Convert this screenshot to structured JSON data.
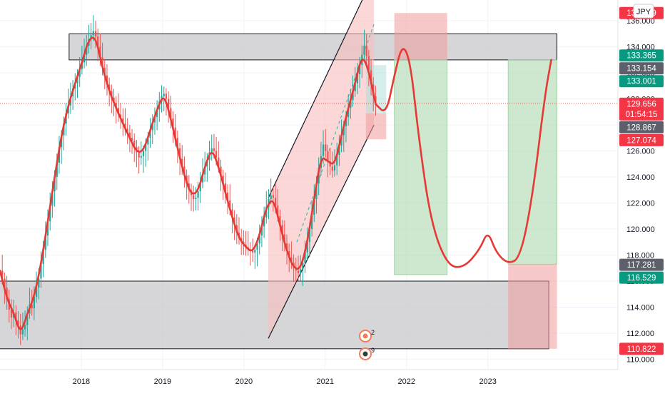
{
  "currency_label": "JPY",
  "colors": {
    "up_candle": "#26a69a",
    "down_candle": "#ef5350",
    "projection_curve": "#e53935",
    "zone_fill": "#c8c8cc",
    "channel_fill": "#f8bcbc",
    "profit_fill": "#a5d6a7",
    "loss_fill": "#ef9a9a",
    "teal_fill": "#b2dfdb",
    "current_price_line": "#ef5350",
    "grid": "#f0f3fa",
    "axis_text": "#131722"
  },
  "badges": [
    {
      "label": "2",
      "kind": "marker"
    },
    {
      "label": "9",
      "kind": "marker"
    }
  ],
  "chart_data": {
    "type": "candlestick",
    "title": "",
    "xlabel": "",
    "ylabel": "",
    "x_ticks": [
      "2018",
      "2019",
      "2020",
      "2021",
      "2022",
      "2023"
    ],
    "y_ticks": [
      "110.000",
      "112.000",
      "114.000",
      "116.000",
      "118.000",
      "120.000",
      "122.000",
      "124.000",
      "126.000",
      "128.000",
      "130.000",
      "132.000",
      "134.000",
      "136.000"
    ],
    "ylim": [
      109.2,
      137.6
    ],
    "xlim": [
      2017.0,
      2024.6
    ],
    "grid": true,
    "price_labels": [
      {
        "value": "136.629",
        "style": "red"
      },
      {
        "value": "133.365",
        "style": "green"
      },
      {
        "value": "133.154",
        "style": "gray"
      },
      {
        "value": "133.001",
        "style": "green"
      },
      {
        "value": "129.656",
        "style": "red",
        "extra": "01:54:15"
      },
      {
        "value": "128.867",
        "style": "gray"
      },
      {
        "value": "127.074",
        "style": "red"
      },
      {
        "value": "117.281",
        "style": "gray"
      },
      {
        "value": "116.529",
        "style": "green"
      },
      {
        "value": "110.822",
        "style": "red"
      }
    ],
    "current_price": 129.656,
    "zones": [
      {
        "name": "resistance",
        "x": [
          2017.85,
          2023.85
        ],
        "y": [
          133.0,
          135.0
        ]
      },
      {
        "name": "support",
        "x": [
          2016.9,
          2023.75
        ],
        "y": [
          110.8,
          116.0
        ]
      }
    ],
    "channel": {
      "x": [
        2020.3,
        2021.6
      ],
      "lower": [
        111.6,
        128.0
      ],
      "upper": [
        122.4,
        139.5
      ]
    },
    "positions": [
      {
        "name": "short",
        "x": [
          2021.85,
          2022.5
        ],
        "stop": [
          133.0,
          136.6
        ],
        "target": [
          116.5,
          133.0
        ]
      },
      {
        "name": "long",
        "x": [
          2023.25,
          2023.85
        ],
        "target": [
          117.3,
          133.0
        ],
        "stop": [
          110.8,
          117.3
        ]
      },
      {
        "name": "small",
        "x": [
          2021.5,
          2021.75
        ],
        "target": [
          128.9,
          132.6
        ],
        "stop": [
          126.9,
          128.9
        ]
      }
    ],
    "candles_close": [
      116.8,
      116.2,
      115.5,
      114.6,
      113.8,
      113.2,
      113.6,
      113.0,
      112.6,
      111.9,
      112.3,
      112.6,
      113.5,
      114.2,
      113.9,
      114.8,
      115.5,
      116.2,
      117.3,
      118.4,
      119.5,
      120.6,
      121.8,
      122.9,
      124.0,
      125.1,
      126.3,
      127.2,
      128.1,
      128.9,
      129.5,
      130.2,
      130.8,
      131.2,
      131.7,
      132.3,
      132.8,
      133.4,
      134.1,
      134.6,
      134.9,
      135.2,
      134.8,
      134.0,
      133.2,
      132.4,
      131.8,
      131.1,
      130.6,
      130.1,
      129.7,
      129.3,
      128.8,
      128.5,
      128.1,
      127.7,
      127.4,
      127.0,
      126.8,
      126.3,
      125.9,
      125.5,
      125.6,
      126.0,
      126.5,
      127.0,
      127.6,
      128.2,
      128.6,
      129.2,
      129.8,
      130.2,
      130.4,
      130.0,
      129.3,
      128.5,
      127.8,
      127.0,
      126.2,
      125.4,
      124.8,
      124.1,
      123.5,
      123.0,
      122.6,
      122.3,
      122.4,
      122.9,
      123.6,
      124.2,
      124.8,
      125.3,
      125.9,
      126.2,
      126.0,
      125.5,
      124.8,
      124.1,
      123.5,
      122.8,
      122.2,
      121.5,
      120.9,
      120.3,
      119.7,
      119.3,
      119.0,
      118.8,
      118.6,
      118.4,
      118.3,
      118.2,
      118.4,
      118.9,
      119.5,
      120.2,
      120.9,
      121.7,
      122.3,
      122.6,
      122.4,
      121.8,
      121.0,
      120.3,
      119.6,
      118.9,
      118.3,
      117.8,
      117.4,
      117.0,
      116.8,
      116.6,
      116.9,
      117.4,
      118.2,
      119.0,
      120.0,
      121.1,
      122.3,
      123.5,
      124.7,
      125.6,
      126.5,
      126.0,
      125.2,
      124.8,
      124.5,
      124.9,
      125.7,
      126.4,
      127.2,
      127.9,
      128.6,
      129.3,
      129.9,
      130.6,
      131.2,
      131.9,
      132.6,
      133.4,
      134.1,
      133.3,
      132.2,
      131.1,
      130.2,
      129.6
    ]
  }
}
